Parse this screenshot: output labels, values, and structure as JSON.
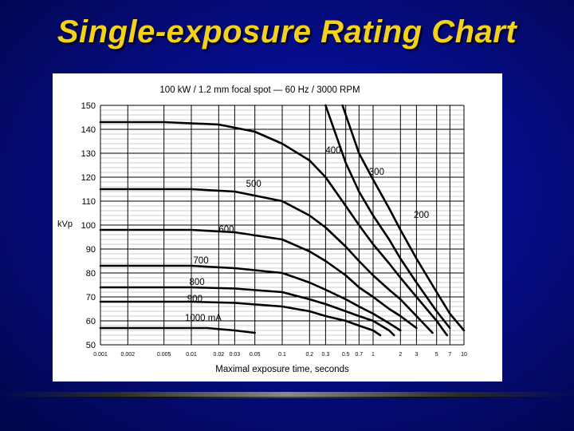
{
  "slide": {
    "title": "Single-exposure Rating Chart"
  },
  "chart_data": {
    "type": "line",
    "title": "100 kW / 1.2 mm focal spot — 60 Hz / 3000 RPM",
    "xlabel": "Maximal exposure time, seconds",
    "ylabel": "kVp",
    "x_scale": "log",
    "xlim": [
      0.001,
      10
    ],
    "ylim": [
      50,
      150
    ],
    "grid": true,
    "x_ticks": [
      0.001,
      0.002,
      0.005,
      0.01,
      0.02,
      0.03,
      0.05,
      0.1,
      0.2,
      0.3,
      0.5,
      0.7,
      1,
      2,
      3,
      5,
      7,
      10
    ],
    "x_tick_labels": [
      "0.001",
      "0.002",
      "0.005",
      "0.01",
      "0.02",
      "0.03",
      "0.05",
      "0.1",
      "0.2",
      "0.3",
      "0.5",
      "0.7",
      "1",
      "2",
      "3",
      "5",
      "7",
      "10"
    ],
    "y_ticks": [
      50,
      60,
      70,
      80,
      90,
      100,
      110,
      120,
      130,
      140,
      150
    ],
    "y_tick_labels": [
      "50",
      "60",
      "70",
      "80",
      "90",
      "100",
      "110",
      "120",
      "130",
      "140",
      "150"
    ],
    "series": [
      {
        "name": "200",
        "points": [
          [
            0.46,
            150
          ],
          [
            0.7,
            130
          ],
          [
            1.0,
            119
          ],
          [
            1.5,
            107
          ],
          [
            2.0,
            98
          ],
          [
            3.0,
            86
          ],
          [
            5.0,
            72
          ],
          [
            7.0,
            63
          ],
          [
            10,
            56
          ]
        ]
      },
      {
        "name": "300",
        "points": [
          [
            0.3,
            150
          ],
          [
            0.5,
            126
          ],
          [
            0.7,
            114
          ],
          [
            1.0,
            104
          ],
          [
            1.5,
            94
          ],
          [
            2.0,
            86
          ],
          [
            3.0,
            76
          ],
          [
            5.0,
            64
          ],
          [
            7.0,
            57
          ]
        ]
      },
      {
        "name": "400",
        "points": [
          [
            0.001,
            143
          ],
          [
            0.005,
            143
          ],
          [
            0.02,
            142
          ],
          [
            0.05,
            139
          ],
          [
            0.1,
            134
          ],
          [
            0.2,
            127
          ],
          [
            0.3,
            120
          ],
          [
            0.5,
            108
          ],
          [
            0.7,
            100
          ],
          [
            1.0,
            92
          ],
          [
            1.5,
            84
          ],
          [
            2.0,
            78
          ],
          [
            3.0,
            70
          ],
          [
            5.0,
            60
          ],
          [
            6.5,
            54
          ]
        ]
      },
      {
        "name": "500",
        "points": [
          [
            0.001,
            115
          ],
          [
            0.01,
            115
          ],
          [
            0.03,
            114
          ],
          [
            0.1,
            110
          ],
          [
            0.2,
            104
          ],
          [
            0.3,
            99
          ],
          [
            0.5,
            91
          ],
          [
            0.7,
            85
          ],
          [
            1.0,
            79
          ],
          [
            1.5,
            73
          ],
          [
            2.0,
            69
          ],
          [
            3.0,
            62
          ],
          [
            4.5,
            55
          ]
        ]
      },
      {
        "name": "600",
        "points": [
          [
            0.001,
            98
          ],
          [
            0.01,
            98
          ],
          [
            0.03,
            97
          ],
          [
            0.1,
            94
          ],
          [
            0.2,
            89
          ],
          [
            0.3,
            85
          ],
          [
            0.5,
            79
          ],
          [
            0.7,
            74
          ],
          [
            1.0,
            70
          ],
          [
            1.5,
            65
          ],
          [
            2.0,
            62
          ],
          [
            3.0,
            57
          ]
        ]
      },
      {
        "name": "700",
        "points": [
          [
            0.001,
            83
          ],
          [
            0.01,
            83
          ],
          [
            0.03,
            82
          ],
          [
            0.1,
            80
          ],
          [
            0.2,
            76
          ],
          [
            0.3,
            73
          ],
          [
            0.5,
            69
          ],
          [
            0.7,
            66
          ],
          [
            1.0,
            63
          ],
          [
            1.5,
            59
          ],
          [
            2.0,
            56
          ]
        ]
      },
      {
        "name": "800",
        "points": [
          [
            0.001,
            74
          ],
          [
            0.01,
            74
          ],
          [
            0.03,
            73.5
          ],
          [
            0.1,
            72
          ],
          [
            0.2,
            69
          ],
          [
            0.3,
            67
          ],
          [
            0.5,
            64
          ],
          [
            0.7,
            62
          ],
          [
            1.0,
            60
          ],
          [
            1.5,
            56
          ],
          [
            1.7,
            54
          ]
        ]
      },
      {
        "name": "900",
        "points": [
          [
            0.001,
            68
          ],
          [
            0.01,
            68
          ],
          [
            0.03,
            67.5
          ],
          [
            0.1,
            66
          ],
          [
            0.2,
            64
          ],
          [
            0.3,
            62
          ],
          [
            0.5,
            60
          ],
          [
            0.7,
            58
          ],
          [
            1.0,
            56
          ],
          [
            1.2,
            54
          ]
        ]
      },
      {
        "name": "1000 mA",
        "points": [
          [
            0.001,
            57
          ],
          [
            0.005,
            57
          ],
          [
            0.015,
            57
          ],
          [
            0.03,
            56
          ],
          [
            0.05,
            55
          ]
        ]
      }
    ],
    "series_labels": [
      {
        "text": "400",
        "x": 0.3,
        "y": 130
      },
      {
        "text": "300",
        "x": 0.9,
        "y": 121
      },
      {
        "text": "500",
        "x": 0.04,
        "y": 116
      },
      {
        "text": "200",
        "x": 2.8,
        "y": 103
      },
      {
        "text": "600",
        "x": 0.02,
        "y": 97
      },
      {
        "text": "700",
        "x": 0.0105,
        "y": 84
      },
      {
        "text": "800",
        "x": 0.0095,
        "y": 75
      },
      {
        "text": "900",
        "x": 0.009,
        "y": 68
      },
      {
        "text": "1000 mA",
        "x": 0.0085,
        "y": 60
      }
    ]
  }
}
